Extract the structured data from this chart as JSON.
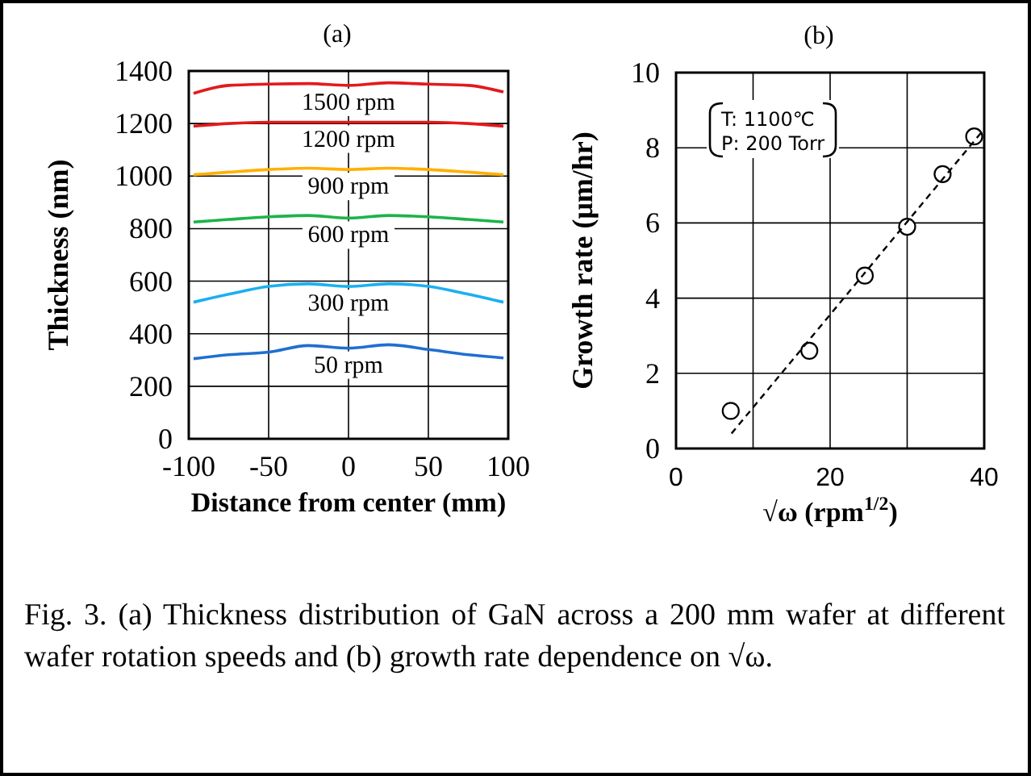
{
  "chart_data": [
    {
      "type": "line",
      "title": "(a)",
      "xlabel": "Distance from center (mm)",
      "ylabel": "Thickness (nm)",
      "x": [
        -97,
        -75,
        -50,
        -25,
        0,
        25,
        50,
        75,
        97
      ],
      "xlim": [
        -100,
        100
      ],
      "xticks": [
        -100,
        -50,
        0,
        50,
        100
      ],
      "ylim": [
        0,
        1400
      ],
      "yticks": [
        0,
        200,
        400,
        600,
        800,
        1000,
        1200,
        1400
      ],
      "grid": true,
      "legend": false,
      "marker": "none",
      "line_style": "solid",
      "series": [
        {
          "name": "1500 rpm",
          "color": "#e31a1c",
          "values": [
            1315,
            1345,
            1350,
            1352,
            1345,
            1355,
            1350,
            1345,
            1320
          ]
        },
        {
          "name": "1200 rpm",
          "color": "#e31a1c",
          "values": [
            1190,
            1200,
            1205,
            1205,
            1205,
            1205,
            1205,
            1200,
            1190
          ]
        },
        {
          "name": "900 rpm",
          "color": "#ffb000",
          "values": [
            1005,
            1015,
            1025,
            1030,
            1025,
            1030,
            1025,
            1015,
            1005
          ]
        },
        {
          "name": "600 rpm",
          "color": "#1db34a",
          "values": [
            825,
            835,
            845,
            850,
            840,
            850,
            845,
            835,
            825
          ]
        },
        {
          "name": "300 rpm",
          "color": "#1ab0f0",
          "values": [
            520,
            550,
            580,
            590,
            580,
            590,
            580,
            550,
            520
          ]
        },
        {
          "name": "50 rpm",
          "color": "#1f6fd0",
          "values": [
            305,
            320,
            330,
            355,
            345,
            358,
            340,
            320,
            308
          ]
        }
      ],
      "annotations": [
        "Fig. 3. (a) Thickness distribution of GaN across a 200 mm wafer at different wafer rotation speeds and (b) growth rate dependence on √ω."
      ]
    },
    {
      "type": "scatter",
      "title": "(b)",
      "xlabel": "√ω (rpm$^{1/2}$)",
      "ylabel": "Growth rate (μm/hr)",
      "xlim": [
        0,
        40
      ],
      "xticks": [
        0,
        {
          "value": 10,
          "label": null
        },
        20,
        {
          "value": 30,
          "label": null
        },
        40
      ],
      "ylim": [
        0,
        10
      ],
      "yticks": [
        0,
        2,
        4,
        6,
        8,
        10
      ],
      "grid": true,
      "marker": "circle",
      "series": [
        {
          "color": "#000000",
          "x": [
            7.1,
            17.3,
            24.5,
            30,
            34.6,
            38.7
          ],
          "values": [
            1.0,
            2.6,
            4.6,
            5.9,
            7.3,
            8.3
          ]
        },
        {
          "type": "line",
          "color": "#000000",
          "line_style": "dashed",
          "marker": "none",
          "x": [
            7.2,
            40
          ],
          "values": [
            0.4,
            8.5
          ]
        }
      ],
      "annotations": [
        "T: 1100℃",
        "P: 200 Torr"
      ]
    }
  ]
}
